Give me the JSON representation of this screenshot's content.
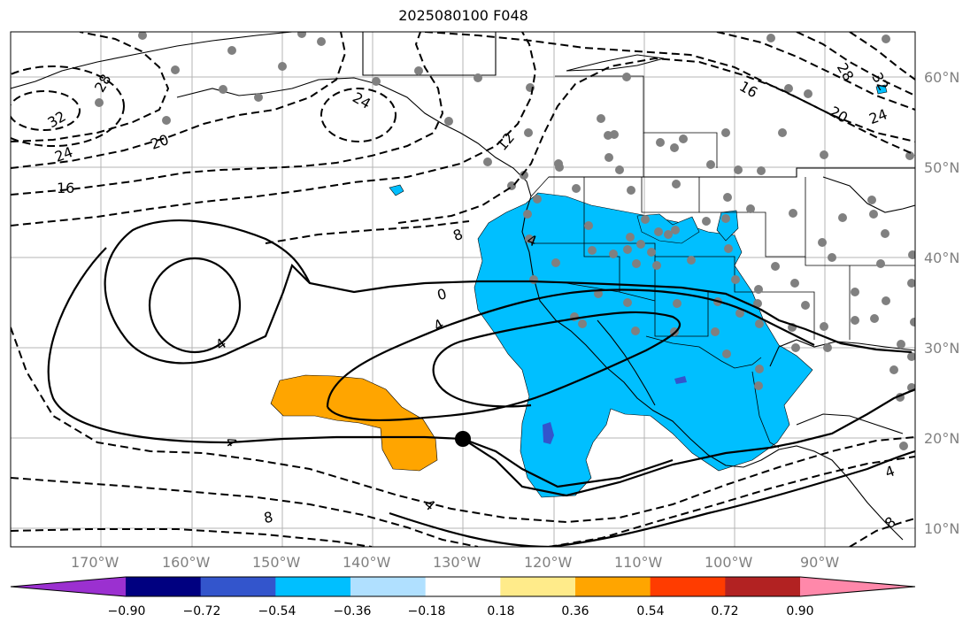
{
  "title": "2025080100 F048",
  "lon_labels": [
    "170°W",
    "160°W",
    "150°W",
    "140°W",
    "130°W",
    "120°W",
    "110°W",
    "100°W",
    "90°W"
  ],
  "lat_labels": [
    "60°N",
    "50°N",
    "40°N",
    "30°N",
    "20°N",
    "10°N"
  ],
  "contour_labels": {
    "c28w": "28",
    "c32w": "32",
    "c24w": "24",
    "c20w": "20",
    "c16w": "16",
    "c24c": "24",
    "c12": "12",
    "c8": "8",
    "c0": "0",
    "c4a": "4",
    "c4b": "4",
    "c4c": "4",
    "c8s": "8",
    "c4s": "4",
    "c16e": "16",
    "c28e": "28",
    "c32e": "32",
    "c20e": "20",
    "c24e": "24",
    "c4e": "4",
    "c8e": "8",
    "c4h": "4"
  },
  "colorbar": {
    "ticks": [
      "−0.90",
      "−0.72",
      "−0.54",
      "−0.36",
      "−0.18",
      "0.18",
      "0.36",
      "0.54",
      "0.72",
      "0.90"
    ],
    "colors": [
      "#9b30d0",
      "#000080",
      "#3355cc",
      "#00bfff",
      "#b0e0ff",
      "#ffffff",
      "#ffeb8a",
      "#ffa500",
      "#ff3c00",
      "#b22222",
      "#ff88aa"
    ]
  },
  "colors": {
    "cyan_field": "#00bfff",
    "orange_field": "#ffa500",
    "stations": "#808080",
    "grid": "#b4b4b4"
  }
}
